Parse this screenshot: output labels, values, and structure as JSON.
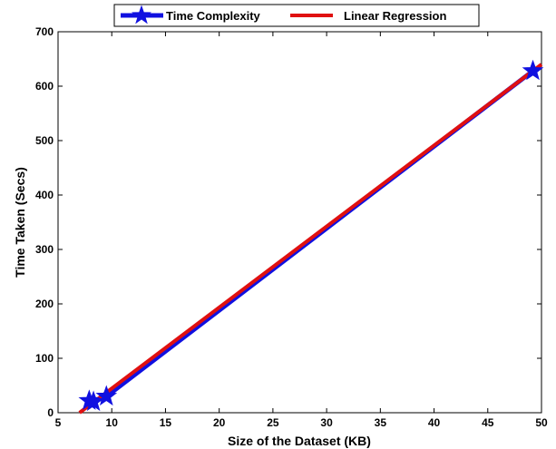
{
  "chart_data": {
    "type": "line",
    "xlabel": "Size of the Dataset (KB)",
    "ylabel": "Time Taken (Secs)",
    "xlim": [
      5,
      50
    ],
    "ylim": [
      0,
      700
    ],
    "xticks": [
      5,
      10,
      15,
      20,
      25,
      30,
      35,
      40,
      45,
      50
    ],
    "yticks": [
      0,
      100,
      200,
      300,
      400,
      500,
      600,
      700
    ],
    "grid": false,
    "legend_position": "top-center",
    "series": [
      {
        "name": "Time Complexity",
        "kind": "line-with-star-markers",
        "color": "#1010e0",
        "x": [
          7.9,
          8.3,
          9.5,
          49.2
        ],
        "y": [
          22,
          20,
          30,
          628
        ]
      },
      {
        "name": "Linear Regression",
        "kind": "line",
        "color": "#e01010",
        "x": [
          7.0,
          50
        ],
        "y": [
          0,
          640
        ]
      }
    ]
  }
}
